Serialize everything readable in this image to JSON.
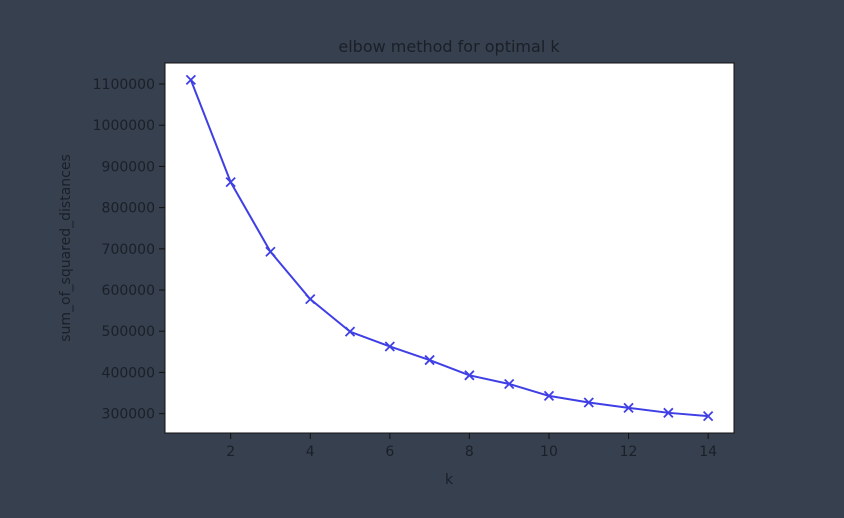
{
  "chart_data": {
    "type": "line",
    "title": "elbow method for optimal k",
    "xlabel": "k",
    "ylabel": "sum_of_squared_distances",
    "x": [
      1,
      2,
      3,
      4,
      5,
      6,
      7,
      8,
      9,
      10,
      11,
      12,
      13,
      14
    ],
    "series": [
      {
        "values": [
          1110000,
          862000,
          693000,
          578000,
          499000,
          463000,
          430000,
          393000,
          372000,
          343000,
          327000,
          314000,
          302000,
          294000
        ],
        "color": "#3f3fe6",
        "marker": "x"
      }
    ],
    "xticks": [
      2,
      4,
      6,
      8,
      10,
      12,
      14
    ],
    "yticks": [
      300000,
      400000,
      500000,
      600000,
      700000,
      800000,
      900000,
      1000000,
      1100000
    ],
    "xlim": [
      0.35,
      14.65
    ],
    "ylim": [
      253000,
      1151000
    ],
    "grid": false,
    "legend": "none"
  }
}
